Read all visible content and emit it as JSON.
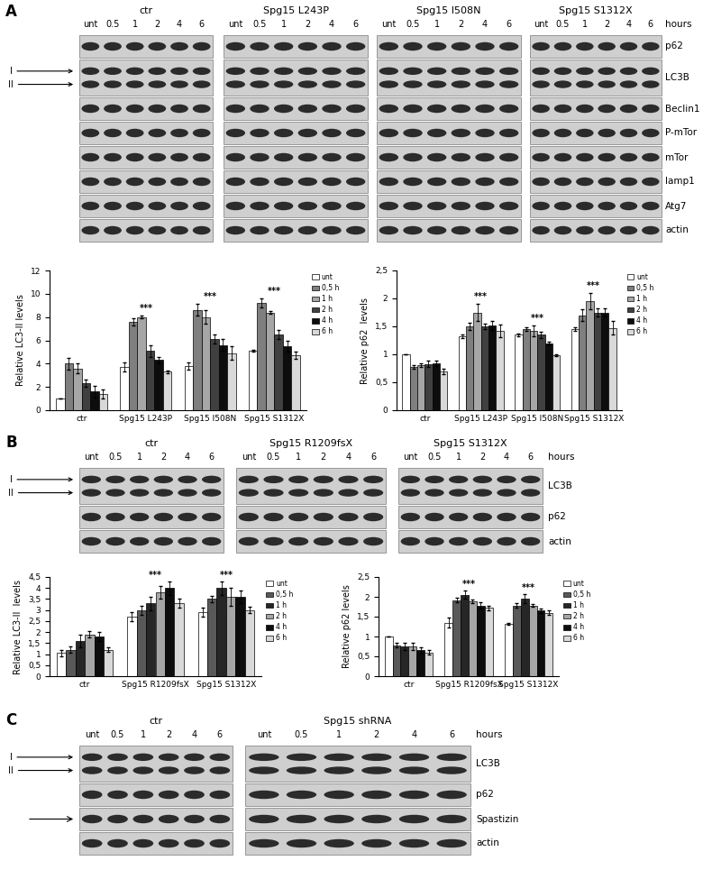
{
  "blots": [
    {
      "letter": "A",
      "hours_label": "hours",
      "groups": [
        {
          "name": "ctr",
          "hours": [
            "unt",
            "0.5",
            "1",
            "2",
            "4",
            "6"
          ]
        },
        {
          "name": "Spg15 L243P",
          "hours": [
            "unt",
            "0.5",
            "1",
            "2",
            "4",
            "6"
          ]
        },
        {
          "name": "Spg15 I508N",
          "hours": [
            "unt",
            "0.5",
            "1",
            "2",
            "4",
            "6"
          ]
        },
        {
          "name": "Spg15 S1312X",
          "hours": [
            "unt",
            "0.5",
            "1",
            "2",
            "4",
            "6"
          ]
        }
      ],
      "rows": [
        {
          "label": "p62"
        },
        {
          "label": "LC3B",
          "markers": [
            "I",
            "II"
          ]
        },
        {
          "label": "Beclin1"
        },
        {
          "label": "P-mTor"
        },
        {
          "label": "mTor"
        },
        {
          "label": "lamp1"
        },
        {
          "label": "Atg7"
        },
        {
          "label": "actin"
        }
      ]
    },
    {
      "letter": "B",
      "hours_label": "hours",
      "groups": [
        {
          "name": "ctr",
          "hours": [
            "unt",
            "0.5",
            "1",
            "2",
            "4",
            "6"
          ]
        },
        {
          "name": "Spg15 R1209fsX",
          "hours": [
            "unt",
            "0.5",
            "1",
            "2",
            "4",
            "6"
          ]
        },
        {
          "name": "Spg15 S1312X",
          "hours": [
            "unt",
            "0.5",
            "1",
            "2",
            "4",
            "6"
          ]
        }
      ],
      "rows": [
        {
          "label": "LC3B",
          "markers": [
            "I",
            "II"
          ]
        },
        {
          "label": "p62"
        },
        {
          "label": "actin"
        }
      ]
    },
    {
      "letter": "C",
      "hours_label": "hours",
      "groups": [
        {
          "name": "ctr",
          "hours": [
            "unt",
            "0.5",
            "1",
            "2",
            "4",
            "6"
          ]
        },
        {
          "name": "Spg15 shRNA",
          "hours": [
            "unt",
            "0.5",
            "1",
            "2",
            "4",
            "6"
          ]
        }
      ],
      "rows": [
        {
          "label": "LC3B",
          "markers": [
            "I",
            "II"
          ]
        },
        {
          "label": "p62"
        },
        {
          "label": "Spastizin",
          "arrow": true
        },
        {
          "label": "actin"
        }
      ]
    }
  ],
  "chart_data": [
    {
      "type": "bar",
      "y_label": "Relative LC3-II levels",
      "categories": [
        "ctr",
        "Spg15 L243P",
        "Spg15 I508N",
        "Spg15 S1312X"
      ],
      "ylim": [
        0,
        12
      ],
      "yticks": [
        0,
        2,
        4,
        6,
        8,
        10,
        12
      ],
      "grid": false,
      "legend": "upper left",
      "series": [
        {
          "name": "unt",
          "color": "#ffffff",
          "values": [
            1,
            3.7,
            3.8,
            5.1
          ],
          "errors": [
            0,
            0.4,
            0.3,
            0.1
          ]
        },
        {
          "name": "0,5 h",
          "color": "#7f7f7f",
          "values": [
            4,
            7.6,
            8.6,
            9.2
          ],
          "errors": [
            0.5,
            0.3,
            0.5,
            0.4
          ]
        },
        {
          "name": "1 h",
          "color": "#a6a6a6",
          "values": [
            3.6,
            8.0,
            8.0,
            8.4
          ],
          "errors": [
            0.4,
            0.1,
            0.6,
            0.1
          ]
        },
        {
          "name": "2 h",
          "color": "#404040",
          "values": [
            2.3,
            5.1,
            6.1,
            6.5
          ],
          "errors": [
            0.3,
            0.5,
            0.4,
            0.4
          ]
        },
        {
          "name": "4 h",
          "color": "#0d0d0d",
          "values": [
            1.6,
            4.3,
            5.6,
            5.5
          ],
          "errors": [
            0.5,
            0.3,
            0.5,
            0.5
          ]
        },
        {
          "name": "6 h",
          "color": "#d9d9d9",
          "values": [
            1.4,
            3.3,
            4.9,
            4.7
          ],
          "errors": [
            0.4,
            0.1,
            0.6,
            0.3
          ]
        }
      ],
      "annotations": [
        {
          "category": "Spg15 L243P",
          "text": "***"
        },
        {
          "category": "Spg15 I508N",
          "text": "***"
        },
        {
          "category": "Spg15 S1312X",
          "text": "***"
        }
      ]
    },
    {
      "type": "bar",
      "y_label": "Relative p62  levels",
      "categories": [
        "ctr",
        "Spg15 L243P",
        "Spg15 I508N",
        "Spg15 S1312X"
      ],
      "ylim": [
        0,
        2.5
      ],
      "yticks": [
        0,
        {
          "value": 0.5,
          "label": "0,5"
        },
        1,
        {
          "value": 1.5,
          "label": "1,5"
        },
        2,
        {
          "value": 2.5,
          "label": "2,5"
        }
      ],
      "grid": false,
      "legend": "upper left",
      "series": [
        {
          "name": "unt",
          "color": "#ffffff",
          "values": [
            1.0,
            1.32,
            1.35,
            1.45
          ],
          "errors": [
            0,
            0.03,
            0.02,
            0.03
          ]
        },
        {
          "name": "0,5 h",
          "color": "#7f7f7f",
          "values": [
            0.78,
            1.5,
            1.45,
            1.7
          ],
          "errors": [
            0.03,
            0.06,
            0.03,
            0.1
          ]
        },
        {
          "name": "1 h",
          "color": "#a6a6a6",
          "values": [
            0.81,
            1.75,
            1.42,
            1.95
          ],
          "errors": [
            0.03,
            0.15,
            0.1,
            0.15
          ]
        },
        {
          "name": "2 h",
          "color": "#404040",
          "values": [
            0.83,
            1.5,
            1.35,
            1.75
          ],
          "errors": [
            0.05,
            0.05,
            0.06,
            0.08
          ]
        },
        {
          "name": "4 h",
          "color": "#0d0d0d",
          "values": [
            0.84,
            1.52,
            1.2,
            1.75
          ],
          "errors": [
            0.05,
            0.08,
            0.02,
            0.08
          ]
        },
        {
          "name": "6 h",
          "color": "#d9d9d9",
          "values": [
            0.7,
            1.42,
            0.98,
            1.47
          ],
          "errors": [
            0.05,
            0.12,
            0.02,
            0.12
          ]
        }
      ],
      "annotations": [
        {
          "category": "Spg15 L243P",
          "text": "***"
        },
        {
          "category": "Spg15 I508N",
          "text": "***"
        },
        {
          "category": "Spg15 S1312X",
          "text": "***"
        }
      ]
    },
    {
      "type": "bar",
      "y_label": "Relative LC3-II  levels",
      "categories": [
        "ctr",
        "Spg15 R1209fsX",
        "Spg15 S1312X"
      ],
      "ylim": [
        0,
        4.5
      ],
      "yticks": [
        0,
        {
          "value": 0.5,
          "label": "0,5"
        },
        1,
        {
          "value": 1.5,
          "label": "1,5"
        },
        2,
        {
          "value": 2.5,
          "label": "2,5"
        },
        3,
        {
          "value": 3.5,
          "label": "3,5"
        },
        4,
        {
          "value": 4.5,
          "label": "4,5"
        }
      ],
      "grid": false,
      "legend": "upper left",
      "series": [
        {
          "name": "unt",
          "color": "#ffffff",
          "values": [
            1.05,
            2.7,
            2.9
          ],
          "errors": [
            0.15,
            0.2,
            0.2
          ]
        },
        {
          "name": "0,5 h",
          "color": "#595959",
          "values": [
            1.2,
            3.0,
            3.5
          ],
          "errors": [
            0.15,
            0.2,
            0.15
          ]
        },
        {
          "name": "1 h",
          "color": "#262626",
          "values": [
            1.6,
            3.3,
            4.0
          ],
          "errors": [
            0.3,
            0.3,
            0.3
          ]
        },
        {
          "name": "2 h",
          "color": "#a6a6a6",
          "values": [
            1.9,
            3.8,
            3.6
          ],
          "errors": [
            0.15,
            0.3,
            0.4
          ]
        },
        {
          "name": "4 h",
          "color": "#0d0d0d",
          "values": [
            1.8,
            4.0,
            3.6
          ],
          "errors": [
            0.2,
            0.3,
            0.3
          ]
        },
        {
          "name": "6 h",
          "color": "#d9d9d9",
          "values": [
            1.2,
            3.3,
            3.0
          ],
          "errors": [
            0.1,
            0.2,
            0.15
          ]
        }
      ],
      "annotations": [
        {
          "category": "Spg15 R1209fsX",
          "text": "***"
        },
        {
          "category": "Spg15 S1312X",
          "text": "***"
        }
      ]
    },
    {
      "type": "bar",
      "y_label": "Relative p62 levels",
      "categories": [
        "ctr",
        "Spg15 R1209fsX",
        "Spg15 S1312X"
      ],
      "ylim": [
        0,
        2.5
      ],
      "yticks": [
        0,
        {
          "value": 0.5,
          "label": "0,5"
        },
        1,
        {
          "value": 1.5,
          "label": "1,5"
        },
        2,
        {
          "value": 2.5,
          "label": "2,5"
        }
      ],
      "grid": false,
      "legend": "upper left",
      "series": [
        {
          "name": "unt",
          "color": "#ffffff",
          "values": [
            1.0,
            1.35,
            1.32
          ],
          "errors": [
            0,
            0.12,
            0.03
          ]
        },
        {
          "name": "0,5 h",
          "color": "#595959",
          "values": [
            0.78,
            1.92,
            1.78
          ],
          "errors": [
            0.05,
            0.05,
            0.05
          ]
        },
        {
          "name": "1 h",
          "color": "#262626",
          "values": [
            0.75,
            2.05,
            1.95
          ],
          "errors": [
            0.1,
            0.1,
            0.12
          ]
        },
        {
          "name": "2 h",
          "color": "#a6a6a6",
          "values": [
            0.75,
            1.88,
            1.78
          ],
          "errors": [
            0.1,
            0.05,
            0.03
          ]
        },
        {
          "name": "4 h",
          "color": "#0d0d0d",
          "values": [
            0.65,
            1.78,
            1.65
          ],
          "errors": [
            0.08,
            0.08,
            0.06
          ]
        },
        {
          "name": "6 h",
          "color": "#d9d9d9",
          "values": [
            0.6,
            1.72,
            1.6
          ],
          "errors": [
            0.06,
            0.06,
            0.06
          ]
        }
      ],
      "annotations": [
        {
          "category": "Spg15 R1209fsX",
          "text": "***"
        },
        {
          "category": "Spg15 S1312X",
          "text": "***"
        }
      ]
    }
  ]
}
